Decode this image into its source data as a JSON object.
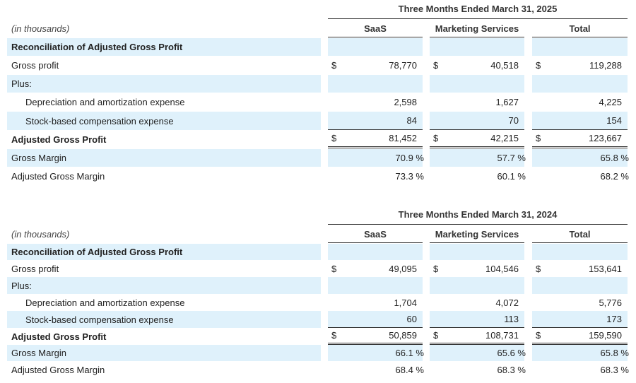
{
  "unit_label": "(in thousands)",
  "columns": [
    "SaaS",
    "Marketing Services",
    "Total"
  ],
  "currency_symbol": "$",
  "tables": [
    {
      "period": "Three Months Ended March 31, 2025",
      "section_title": "Reconciliation of Adjusted Gross Profit",
      "rows": {
        "gross_profit": {
          "label": "Gross profit",
          "values": [
            "78,770",
            "40,518",
            "119,288"
          ]
        },
        "plus": {
          "label": "Plus:"
        },
        "depreciation": {
          "label": "Depreciation and amortization expense",
          "values": [
            "2,598",
            "1,627",
            "4,225"
          ]
        },
        "stock_comp": {
          "label": "Stock-based compensation expense",
          "values": [
            "84",
            "70",
            "154"
          ]
        },
        "adjusted_gross_profit": {
          "label": "Adjusted Gross Profit",
          "values": [
            "81,452",
            "42,215",
            "123,667"
          ]
        },
        "gross_margin": {
          "label": "Gross Margin",
          "values": [
            "70.9 %",
            "57.7 %",
            "65.8 %"
          ]
        },
        "adjusted_gross_margin": {
          "label": "Adjusted Gross Margin",
          "values": [
            "73.3 %",
            "60.1 %",
            "68.2 %"
          ]
        }
      }
    },
    {
      "period": "Three Months Ended March 31, 2024",
      "section_title": "Reconciliation of Adjusted Gross Profit",
      "rows": {
        "gross_profit": {
          "label": "Gross profit",
          "values": [
            "49,095",
            "104,546",
            "153,641"
          ]
        },
        "plus": {
          "label": "Plus:"
        },
        "depreciation": {
          "label": "Depreciation and amortization expense",
          "values": [
            "1,704",
            "4,072",
            "5,776"
          ]
        },
        "stock_comp": {
          "label": "Stock-based compensation expense",
          "values": [
            "60",
            "113",
            "173"
          ]
        },
        "adjusted_gross_profit": {
          "label": "Adjusted Gross Profit",
          "values": [
            "50,859",
            "108,731",
            "159,590"
          ]
        },
        "gross_margin": {
          "label": "Gross Margin",
          "values": [
            "66.1 %",
            "65.6 %",
            "65.8 %"
          ]
        },
        "adjusted_gross_margin": {
          "label": "Adjusted Gross Margin",
          "values": [
            "68.4 %",
            "68.3 %",
            "68.3 %"
          ]
        }
      }
    }
  ]
}
